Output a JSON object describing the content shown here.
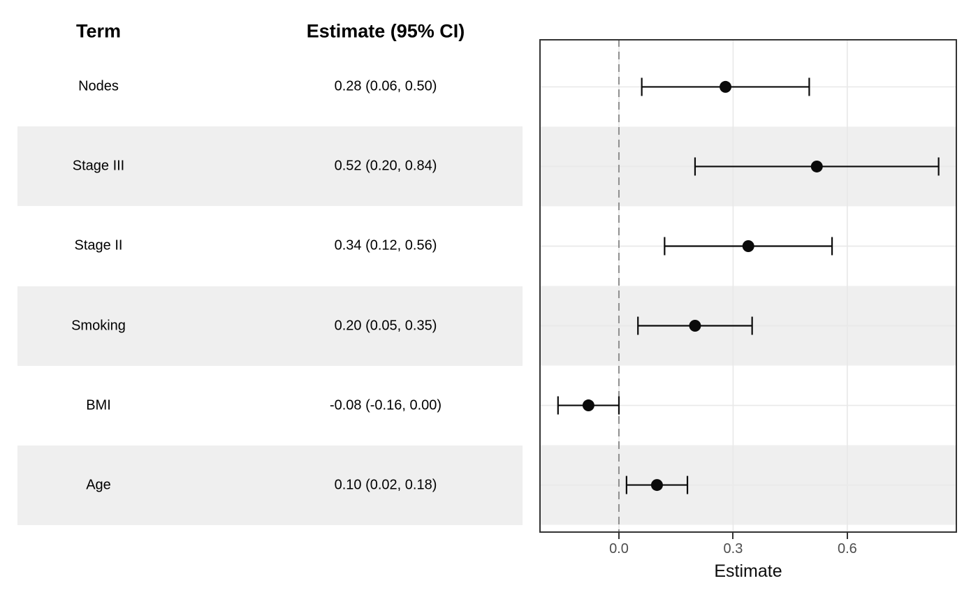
{
  "table": {
    "headers": {
      "term": "Term",
      "estimate": "Estimate (95% CI)"
    }
  },
  "axis": {
    "title": "Estimate",
    "tick_labels": [
      "0.0",
      "0.3",
      "0.6"
    ],
    "tick_values": [
      0.0,
      0.3,
      0.6
    ]
  },
  "chart_data": {
    "type": "forest",
    "title": "",
    "xlabel": "Estimate",
    "xlim": [
      -0.2092,
      0.8884
    ],
    "reference_line": 0.0,
    "grid": "major-only",
    "rows": [
      {
        "term": "Nodes",
        "label": "0.28 (0.06, 0.50)",
        "estimate": 0.28,
        "ci_low": 0.06,
        "ci_high": 0.5,
        "striped": false
      },
      {
        "term": "Stage III",
        "label": "0.52 (0.20, 0.84)",
        "estimate": 0.52,
        "ci_low": 0.2,
        "ci_high": 0.84,
        "striped": true
      },
      {
        "term": "Stage II",
        "label": "0.34 (0.12, 0.56)",
        "estimate": 0.34,
        "ci_low": 0.12,
        "ci_high": 0.56,
        "striped": false
      },
      {
        "term": "Smoking",
        "label": "0.20 (0.05, 0.35)",
        "estimate": 0.2,
        "ci_low": 0.05,
        "ci_high": 0.35,
        "striped": true
      },
      {
        "term": "BMI",
        "label": "-0.08 (-0.16, 0.00)",
        "estimate": -0.08,
        "ci_low": -0.16,
        "ci_high": 0.0,
        "striped": false
      },
      {
        "term": "Age",
        "label": "0.10 (0.02, 0.18)",
        "estimate": 0.1,
        "ci_low": 0.02,
        "ci_high": 0.18,
        "striped": true
      }
    ],
    "colors": {
      "stripe": "#efefef",
      "grid": "#e9e9e9",
      "reference_line": "#8f8f8f",
      "marker": "#0b0b0b",
      "panel_border": "#333333",
      "tick_text": "#4d4d4d",
      "text": "#000000"
    }
  }
}
